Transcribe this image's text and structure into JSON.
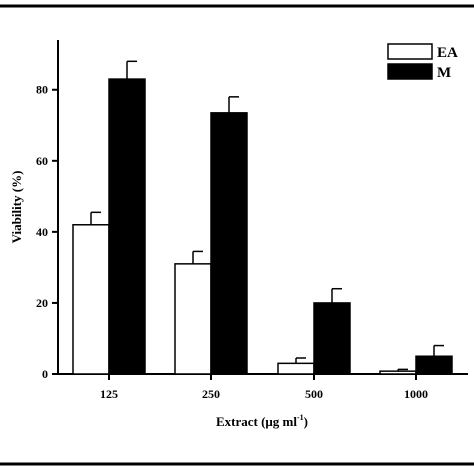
{
  "chart_data": {
    "type": "bar",
    "categories": [
      "125",
      "250",
      "500",
      "1000"
    ],
    "series": [
      {
        "name": "EA",
        "color": "#ffffff",
        "values": [
          42,
          31,
          3,
          0.8
        ],
        "errors": [
          3.5,
          3.5,
          1.5,
          0.5
        ]
      },
      {
        "name": "M",
        "color": "#000000",
        "values": [
          83,
          73.5,
          20,
          5
        ],
        "errors": [
          5,
          4.5,
          4,
          3
        ]
      }
    ],
    "xlabel_main": "Extract (μg ml",
    "xlabel_sup": "-1",
    "xlabel_end": ")",
    "ylabel": "Viability (%)",
    "ylim": [
      0,
      94
    ],
    "yticks": [
      "0",
      "20",
      "40",
      "60",
      "80"
    ],
    "legend_position": "top-right",
    "grid": false
  }
}
